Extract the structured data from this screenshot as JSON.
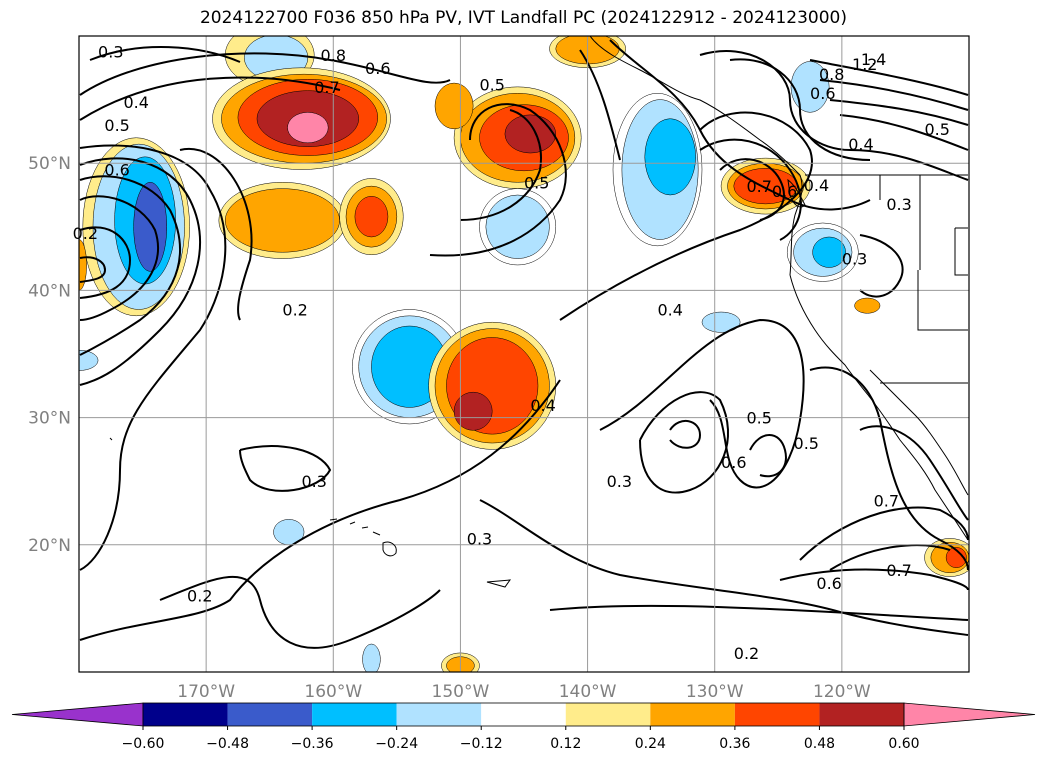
{
  "title": "2024122700 F036 850 hPa PV, IVT Landfall PC (2024122912 - 2024123000)",
  "map": {
    "projection": "PlateCarree",
    "lon_range": [
      -180,
      -110
    ],
    "lat_range": [
      10,
      60
    ],
    "lon_ticks": [
      {
        "value": -170,
        "label": "170°W"
      },
      {
        "value": -160,
        "label": "160°W"
      },
      {
        "value": -150,
        "label": "150°W"
      },
      {
        "value": -140,
        "label": "140°W"
      },
      {
        "value": -130,
        "label": "130°W"
      },
      {
        "value": -120,
        "label": "120°W"
      }
    ],
    "lat_ticks": [
      {
        "value": 20,
        "label": "20°N"
      },
      {
        "value": 30,
        "label": "30°N"
      },
      {
        "value": 40,
        "label": "40°N"
      },
      {
        "value": 50,
        "label": "50°N"
      }
    ],
    "grid": true
  },
  "colorbar": {
    "extend": "both",
    "bounds": [
      -0.72,
      -0.6,
      -0.48,
      -0.36,
      -0.24,
      -0.12,
      0.12,
      0.24,
      0.36,
      0.48,
      0.6,
      0.72
    ],
    "colors": [
      "#9932CC",
      "#00008B",
      "#3A5BCB",
      "#00BFFF",
      "#B0E2FF",
      "#FFFFFF",
      "#FFEC8B",
      "#FFA500",
      "#FF4500",
      "#B22222",
      "#FF85A8"
    ],
    "tick_labels": [
      "−0.60",
      "−0.48",
      "−0.36",
      "−0.24",
      "−0.12",
      "0.12",
      "0.24",
      "0.36",
      "0.48",
      "0.60"
    ]
  },
  "contour_labels": [
    {
      "text": "0.3",
      "lon": -177.5,
      "lat": 58.8
    },
    {
      "text": "0.4",
      "lon": -175.5,
      "lat": 54.8
    },
    {
      "text": "0.5",
      "lon": -177,
      "lat": 53
    },
    {
      "text": "0.8",
      "lon": -160,
      "lat": 58.5
    },
    {
      "text": "0.7",
      "lon": -160.5,
      "lat": 56
    },
    {
      "text": "0.6",
      "lon": -156.5,
      "lat": 57.5
    },
    {
      "text": "0.5",
      "lon": -147.5,
      "lat": 56.2
    },
    {
      "text": "0.5",
      "lon": -144,
      "lat": 48.5
    },
    {
      "text": "0.2",
      "lon": -163,
      "lat": 38.5
    },
    {
      "text": "0.4",
      "lon": -133.5,
      "lat": 38.5
    },
    {
      "text": "0.4",
      "lon": -143.5,
      "lat": 31
    },
    {
      "text": "0.3",
      "lon": -161.5,
      "lat": 25
    },
    {
      "text": "0.3",
      "lon": -137.5,
      "lat": 25
    },
    {
      "text": "0.3",
      "lon": -148.5,
      "lat": 20.5
    },
    {
      "text": "0.2",
      "lon": -170.5,
      "lat": 16
    },
    {
      "text": "0.2",
      "lon": -127.5,
      "lat": 11.5
    },
    {
      "text": "0.5",
      "lon": -126.5,
      "lat": 30
    },
    {
      "text": "0.6",
      "lon": -128.5,
      "lat": 26.5
    },
    {
      "text": "0.5",
      "lon": -122.8,
      "lat": 28
    },
    {
      "text": "0.6",
      "lon": -121,
      "lat": 17
    },
    {
      "text": "0.7",
      "lon": -116.5,
      "lat": 23.5
    },
    {
      "text": "0.7",
      "lon": -115.5,
      "lat": 18
    },
    {
      "text": "0.7",
      "lon": -126.5,
      "lat": 48.2
    },
    {
      "text": "0.6",
      "lon": -124.5,
      "lat": 47.8
    },
    {
      "text": "0.4",
      "lon": -122,
      "lat": 48.3
    },
    {
      "text": "0.3",
      "lon": -119,
      "lat": 42.5
    },
    {
      "text": "0.3",
      "lon": -115.5,
      "lat": 46.8
    },
    {
      "text": "0.4",
      "lon": -118.5,
      "lat": 51.5
    },
    {
      "text": "0.5",
      "lon": -112.5,
      "lat": 52.7
    },
    {
      "text": "1.4",
      "lon": -117.5,
      "lat": 58.2
    },
    {
      "text": "1.2",
      "lon": -118.2,
      "lat": 57.8
    },
    {
      "text": "0.8",
      "lon": -120.8,
      "lat": 57
    },
    {
      "text": "0.6",
      "lon": -121.5,
      "lat": 55.5
    },
    {
      "text": "0.2",
      "lon": -179.5,
      "lat": 44.5
    },
    {
      "text": "0.6",
      "lon": -177,
      "lat": 49.5
    }
  ],
  "shaded_areas": [
    {
      "level": 0.12,
      "lon": -165,
      "lat": 58.5,
      "rlon": 3.5,
      "rlat": 2.5
    },
    {
      "level": -0.24,
      "lon": -164.5,
      "lat": 58.3,
      "rlon": 2.5,
      "rlat": 1.8
    },
    {
      "level": 0.12,
      "lon": -175.5,
      "lat": 45,
      "rlon": 4.2,
      "rlat": 7
    },
    {
      "level": -0.24,
      "lon": -175.3,
      "lat": 45,
      "rlon": 3.6,
      "rlat": 6.5
    },
    {
      "level": -0.36,
      "lon": -174.8,
      "lat": 45.5,
      "rlon": 2.4,
      "rlat": 5
    },
    {
      "level": -0.48,
      "lon": -174.4,
      "lat": 45,
      "rlon": 1.3,
      "rlat": 3.5
    },
    {
      "level": 0.12,
      "lon": -162.5,
      "lat": 53.5,
      "rlon": 7,
      "rlat": 4
    },
    {
      "level": 0.24,
      "lon": -162.3,
      "lat": 53.5,
      "rlon": 6.5,
      "rlat": 3.5
    },
    {
      "level": 0.36,
      "lon": -162,
      "lat": 53.6,
      "rlon": 5.5,
      "rlat": 3
    },
    {
      "level": 0.48,
      "lon": -162,
      "lat": 53.5,
      "rlon": 4,
      "rlat": 2.2
    },
    {
      "level": 0.6,
      "lon": -162,
      "lat": 52.8,
      "rlon": 1.6,
      "rlat": 1.2
    },
    {
      "level": 0.12,
      "lon": -164,
      "lat": 45.5,
      "rlon": 5,
      "rlat": 3
    },
    {
      "level": 0.24,
      "lon": -164,
      "lat": 45.5,
      "rlon": 4.5,
      "rlat": 2.5
    },
    {
      "level": 0.12,
      "lon": -157,
      "lat": 45.8,
      "rlon": 2.5,
      "rlat": 3
    },
    {
      "level": 0.24,
      "lon": -157,
      "lat": 45.8,
      "rlon": 2,
      "rlat": 2.4
    },
    {
      "level": 0.36,
      "lon": -157,
      "lat": 45.8,
      "rlon": 1.3,
      "rlat": 1.6
    },
    {
      "level": 0.12,
      "lon": -145.5,
      "lat": 52,
      "rlon": 5,
      "rlat": 4
    },
    {
      "level": 0.24,
      "lon": -145.5,
      "lat": 52,
      "rlon": 4.5,
      "rlat": 3.5
    },
    {
      "level": 0.36,
      "lon": -145,
      "lat": 52,
      "rlon": 3.5,
      "rlat": 2.6
    },
    {
      "level": 0.48,
      "lon": -144.5,
      "lat": 52.3,
      "rlon": 2,
      "rlat": 1.5
    },
    {
      "level": 0.24,
      "lon": -150.5,
      "lat": 54.5,
      "rlon": 1.5,
      "rlat": 1.8
    },
    {
      "level": 0.12,
      "lon": -140,
      "lat": 59,
      "rlon": 3,
      "rlat": 1.5
    },
    {
      "level": 0.24,
      "lon": -140,
      "lat": 59,
      "rlon": 2.5,
      "rlat": 1.2
    },
    {
      "level": -0.12,
      "lon": -134.5,
      "lat": 49.5,
      "rlon": 3.5,
      "rlat": 6
    },
    {
      "level": -0.24,
      "lon": -134.3,
      "lat": 49.5,
      "rlon": 3,
      "rlat": 5.5
    },
    {
      "level": -0.36,
      "lon": -133.5,
      "lat": 50.5,
      "rlon": 2,
      "rlat": 3
    },
    {
      "level": -0.12,
      "lon": -145.5,
      "lat": 45,
      "rlon": 3,
      "rlat": 3
    },
    {
      "level": -0.24,
      "lon": -145.5,
      "lat": 45,
      "rlon": 2.5,
      "rlat": 2.5
    },
    {
      "level": -0.24,
      "lon": -122.5,
      "lat": 56,
      "rlon": 1.5,
      "rlat": 2
    },
    {
      "level": 0.12,
      "lon": -126,
      "lat": 48.2,
      "rlon": 3.5,
      "rlat": 2.2
    },
    {
      "level": 0.24,
      "lon": -126,
      "lat": 48.2,
      "rlon": 3,
      "rlat": 1.8
    },
    {
      "level": 0.36,
      "lon": -126,
      "lat": 48.2,
      "rlon": 2.5,
      "rlat": 1.4
    },
    {
      "level": -0.12,
      "lon": -121.5,
      "lat": 43,
      "rlon": 2.8,
      "rlat": 2.3
    },
    {
      "level": -0.24,
      "lon": -121.5,
      "lat": 43,
      "rlon": 2.3,
      "rlat": 1.9
    },
    {
      "level": -0.36,
      "lon": -121,
      "lat": 43,
      "rlon": 1.3,
      "rlat": 1.2
    },
    {
      "level": -0.12,
      "lon": -154,
      "lat": 34,
      "rlon": 4.5,
      "rlat": 4.5
    },
    {
      "level": -0.24,
      "lon": -154,
      "lat": 34,
      "rlon": 4,
      "rlat": 4
    },
    {
      "level": -0.36,
      "lon": -154,
      "lat": 34,
      "rlon": 3,
      "rlat": 3.2
    },
    {
      "level": 0.12,
      "lon": -147.5,
      "lat": 32.5,
      "rlon": 5,
      "rlat": 5
    },
    {
      "level": 0.24,
      "lon": -147.5,
      "lat": 32.5,
      "rlon": 4.5,
      "rlat": 4.5
    },
    {
      "level": 0.36,
      "lon": -147.5,
      "lat": 32.5,
      "rlon": 3.6,
      "rlat": 3.8
    },
    {
      "level": 0.48,
      "lon": -149,
      "lat": 30.5,
      "rlon": 1.5,
      "rlat": 1.5
    },
    {
      "level": -0.24,
      "lon": -163.5,
      "lat": 21,
      "rlon": 1.2,
      "rlat": 1
    },
    {
      "level": -0.24,
      "lon": -129.5,
      "lat": 37.5,
      "rlon": 1.5,
      "rlat": 0.8
    },
    {
      "level": 0.24,
      "lon": -118,
      "lat": 38.8,
      "rlon": 1,
      "rlat": 0.6
    },
    {
      "level": 0.12,
      "lon": -111.5,
      "lat": 19,
      "rlon": 2,
      "rlat": 1.5
    },
    {
      "level": 0.24,
      "lon": -111.5,
      "lat": 19,
      "rlon": 1.5,
      "rlat": 1.2
    },
    {
      "level": 0.36,
      "lon": -111,
      "lat": 19,
      "rlon": 0.8,
      "rlat": 0.8
    },
    {
      "level": 0.12,
      "lon": -150,
      "lat": 10.5,
      "rlon": 1.5,
      "rlat": 1
    },
    {
      "level": 0.24,
      "lon": -150,
      "lat": 10.5,
      "rlon": 1.1,
      "rlat": 0.7
    },
    {
      "level": -0.24,
      "lon": -157,
      "lat": 11,
      "rlon": 0.7,
      "rlat": 1.2
    },
    {
      "level": -0.24,
      "lon": -180,
      "lat": 34.5,
      "rlon": 1.5,
      "rlat": 0.8
    },
    {
      "level": 0.24,
      "lon": -180,
      "lat": 42,
      "rlon": 0.6,
      "rlat": 2
    }
  ]
}
